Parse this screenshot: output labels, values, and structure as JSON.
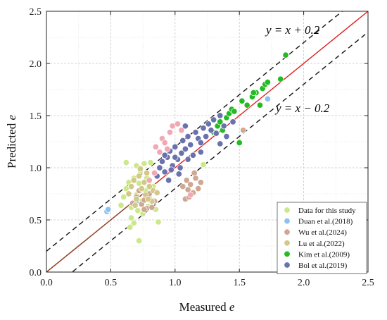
{
  "chart_data": {
    "type": "scatter",
    "xlabel": "Measured",
    "xlabel_var": "e",
    "ylabel": "Predicted",
    "ylabel_var": "e",
    "xlim": [
      0.0,
      2.5
    ],
    "ylim": [
      0.0,
      2.5
    ],
    "x_ticks": [
      "0.0",
      "0.5",
      "1.0",
      "1.5",
      "2.0",
      "2.5"
    ],
    "y_ticks": [
      "0.0",
      "0.5",
      "1.0",
      "1.5",
      "2.0",
      "2.5"
    ],
    "grid": true,
    "legend_position": "bottom-right",
    "reference_lines": [
      {
        "label": "",
        "offset": 0.0,
        "style": "solid",
        "color": "#e02020"
      },
      {
        "label": "y = x + 0.2",
        "offset": 0.2,
        "style": "dashed",
        "color": "#111111"
      },
      {
        "label": "y = x − 0.2",
        "offset": -0.2,
        "style": "dashed",
        "color": "#111111"
      }
    ],
    "series": [
      {
        "name": "Data for this study",
        "color": "#cde88a",
        "points": [
          [
            0.58,
            0.64
          ],
          [
            0.6,
            0.72
          ],
          [
            0.62,
            0.8
          ],
          [
            0.64,
            0.86
          ],
          [
            0.65,
            0.43
          ],
          [
            0.66,
            0.62
          ],
          [
            0.68,
            0.9
          ],
          [
            0.68,
            0.47
          ],
          [
            0.7,
            0.74
          ],
          [
            0.71,
            0.59
          ],
          [
            0.72,
            0.85
          ],
          [
            0.72,
            0.3
          ],
          [
            0.73,
            0.97
          ],
          [
            0.74,
            0.68
          ],
          [
            0.75,
            0.56
          ],
          [
            0.76,
            1.04
          ],
          [
            0.77,
            0.78
          ],
          [
            0.78,
            0.9
          ],
          [
            0.79,
            0.63
          ],
          [
            0.8,
            0.71
          ],
          [
            0.81,
            1.05
          ],
          [
            0.83,
            0.82
          ],
          [
            0.85,
            0.6
          ],
          [
            0.87,
            0.48
          ],
          [
            0.62,
            1.05
          ],
          [
            0.7,
            1.02
          ],
          [
            1.22,
            1.03
          ],
          [
            0.66,
            0.52
          ]
        ]
      },
      {
        "name": "Duan et al.(2018)",
        "color": "#8ec1ee",
        "points": [
          [
            0.47,
            0.58
          ],
          [
            0.48,
            0.6
          ],
          [
            0.7,
            0.68
          ],
          [
            1.72,
            1.66
          ]
        ]
      },
      {
        "name": "Wu et al.(2024)",
        "color": "#cfa893",
        "points": [
          [
            0.67,
            0.66
          ],
          [
            0.7,
            0.72
          ],
          [
            0.72,
            0.78
          ],
          [
            0.74,
            0.65
          ],
          [
            0.76,
            0.69
          ],
          [
            0.78,
            0.61
          ],
          [
            0.8,
            0.75
          ],
          [
            0.82,
            0.62
          ],
          [
            0.84,
            0.68
          ],
          [
            1.08,
            0.7
          ],
          [
            1.1,
            0.79
          ],
          [
            1.12,
            0.84
          ],
          [
            1.14,
            0.76
          ],
          [
            1.16,
            0.9
          ],
          [
            1.18,
            0.8
          ],
          [
            1.2,
            0.86
          ],
          [
            1.09,
            0.88
          ],
          [
            1.15,
            0.95
          ],
          [
            1.06,
            0.82
          ],
          [
            1.11,
            0.72
          ],
          [
            1.53,
            1.36
          ],
          [
            0.76,
            0.6
          ]
        ]
      },
      {
        "name": "Lu  et al.(2022)",
        "color": "#d2c88c",
        "points": [
          [
            0.64,
            0.75
          ],
          [
            0.66,
            0.82
          ],
          [
            0.68,
            0.88
          ],
          [
            0.7,
            0.7
          ],
          [
            0.72,
            0.92
          ],
          [
            0.74,
            0.8
          ],
          [
            0.76,
            0.86
          ],
          [
            0.77,
            0.74
          ],
          [
            0.78,
            0.95
          ],
          [
            0.8,
            0.82
          ],
          [
            0.82,
            0.68
          ],
          [
            0.83,
            0.78
          ],
          [
            0.69,
            0.64
          ],
          [
            0.86,
            0.76
          ],
          [
            0.73,
            0.99
          ],
          [
            0.79,
            0.7
          ]
        ]
      },
      {
        "name": "Kim et al.(2009)",
        "color": "#22bb22",
        "points": [
          [
            1.3,
            1.34
          ],
          [
            1.33,
            1.4
          ],
          [
            1.35,
            1.44
          ],
          [
            1.37,
            1.36
          ],
          [
            1.4,
            1.48
          ],
          [
            1.42,
            1.52
          ],
          [
            1.44,
            1.56
          ],
          [
            1.46,
            1.54
          ],
          [
            1.5,
            1.24
          ],
          [
            1.52,
            1.64
          ],
          [
            1.56,
            1.6
          ],
          [
            1.6,
            1.68
          ],
          [
            1.63,
            1.72
          ],
          [
            1.66,
            1.6
          ],
          [
            1.68,
            1.76
          ],
          [
            1.7,
            1.8
          ],
          [
            1.72,
            1.82
          ],
          [
            1.82,
            1.85
          ],
          [
            1.86,
            2.08
          ],
          [
            1.61,
            1.72
          ]
        ]
      },
      {
        "name": "Bol et al.(2019)",
        "color": "#6a72ae",
        "points": [
          [
            0.86,
            0.92
          ],
          [
            0.88,
            1.0
          ],
          [
            0.9,
            1.06
          ],
          [
            0.92,
            0.96
          ],
          [
            0.94,
            1.1
          ],
          [
            0.95,
            0.88
          ],
          [
            0.96,
            1.16
          ],
          [
            0.98,
            1.02
          ],
          [
            1.0,
            1.2
          ],
          [
            1.02,
            1.08
          ],
          [
            1.03,
            0.94
          ],
          [
            1.05,
            1.14
          ],
          [
            1.06,
            1.26
          ],
          [
            1.08,
            1.18
          ],
          [
            1.1,
            1.3
          ],
          [
            1.12,
            1.22
          ],
          [
            1.14,
            1.12
          ],
          [
            1.16,
            1.34
          ],
          [
            1.18,
            1.28
          ],
          [
            1.2,
            1.24
          ],
          [
            1.22,
            1.38
          ],
          [
            1.24,
            1.3
          ],
          [
            1.26,
            1.42
          ],
          [
            1.28,
            1.36
          ],
          [
            1.3,
            1.46
          ],
          [
            1.32,
            1.33
          ],
          [
            1.35,
            1.5
          ],
          [
            1.38,
            1.4
          ],
          [
            1.4,
            1.3
          ],
          [
            1.45,
            1.44
          ],
          [
            0.97,
            0.98
          ],
          [
            1.0,
            1.1
          ],
          [
            1.04,
            1.0
          ],
          [
            1.1,
            1.08
          ],
          [
            0.92,
            1.12
          ],
          [
            1.08,
            1.4
          ],
          [
            1.2,
            1.15
          ],
          [
            1.35,
            1.23
          ]
        ]
      },
      {
        "name": "",
        "color": "#f0a8b4",
        "points": [
          [
            0.85,
            1.2
          ],
          [
            0.9,
            1.28
          ],
          [
            0.92,
            1.24
          ],
          [
            0.96,
            1.34
          ],
          [
            0.98,
            1.4
          ],
          [
            1.02,
            1.42
          ],
          [
            0.88,
            1.15
          ],
          [
            1.05,
            1.36
          ],
          [
            0.94,
            1.18
          ],
          [
            0.8,
            0.88
          ],
          [
            0.84,
            0.95
          ],
          [
            1.12,
            0.74
          ]
        ]
      }
    ]
  }
}
